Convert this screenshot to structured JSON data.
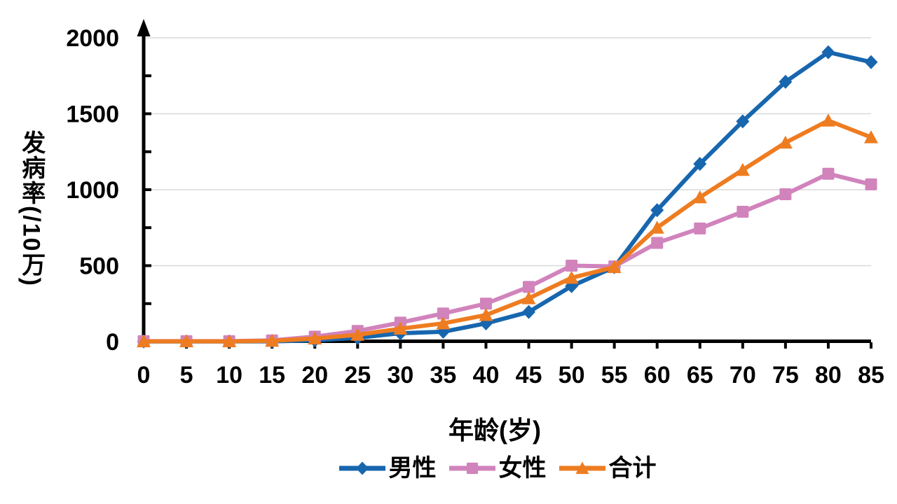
{
  "chart_data": {
    "type": "line",
    "title": "",
    "xlabel": "年龄(岁)",
    "ylabel": "发病率(/10万)",
    "x": [
      0,
      5,
      10,
      15,
      20,
      25,
      30,
      35,
      40,
      45,
      50,
      55,
      60,
      65,
      70,
      75,
      80,
      85
    ],
    "ylim": [
      0,
      2000
    ],
    "y_ticks": [
      0,
      500,
      1000,
      1500,
      2000
    ],
    "y_minor_tick_step": 250,
    "grid": "horizontal-only",
    "legend_position": "bottom",
    "series": [
      {
        "name": "男性",
        "color": "#1766AE",
        "marker": "diamond",
        "values": [
          1,
          1,
          1,
          2,
          8,
          25,
          55,
          65,
          120,
          195,
          365,
          490,
          865,
          1170,
          1450,
          1710,
          1905,
          1840
        ]
      },
      {
        "name": "女性",
        "color": "#D183BC",
        "marker": "square",
        "values": [
          3,
          3,
          3,
          8,
          33,
          70,
          125,
          185,
          250,
          360,
          500,
          495,
          650,
          745,
          855,
          970,
          1105,
          1035
        ]
      },
      {
        "name": "合计",
        "color": "#EE7C20",
        "marker": "triangle",
        "values": [
          2,
          2,
          2,
          5,
          20,
          45,
          85,
          120,
          175,
          285,
          420,
          490,
          750,
          950,
          1130,
          1310,
          1455,
          1345
        ]
      }
    ],
    "style": {
      "grid_color": "#D9D9D9",
      "axis_color": "#000000",
      "background": "#FFFFFF"
    }
  }
}
